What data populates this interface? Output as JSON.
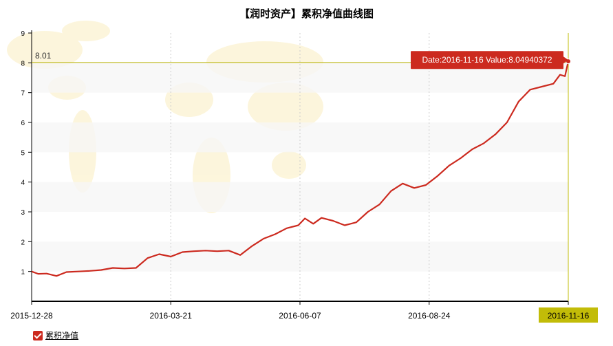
{
  "chart_data": {
    "type": "line",
    "title": "【润时资产】累积净值曲线图",
    "x_ticks": [
      "2015-12-28",
      "2016-03-21",
      "2016-06-07",
      "2016-08-24",
      "2016-11-16"
    ],
    "y_ticks": [
      1,
      2,
      3,
      4,
      5,
      6,
      7,
      8,
      9
    ],
    "ylim": [
      0,
      9
    ],
    "xlim": [
      "2015-12-28",
      "2016-11-16"
    ],
    "grid": "horizontal bands, dotted vertical lines",
    "legend_position": "bottom-left",
    "series": [
      {
        "name": "累积净值",
        "color": "#cc2a1f",
        "x": [
          "2015-12-28",
          "2016-01-01",
          "2016-01-06",
          "2016-01-12",
          "2016-01-18",
          "2016-01-25",
          "2016-02-01",
          "2016-02-08",
          "2016-02-15",
          "2016-02-22",
          "2016-02-29",
          "2016-03-07",
          "2016-03-14",
          "2016-03-21",
          "2016-03-28",
          "2016-04-04",
          "2016-04-11",
          "2016-04-18",
          "2016-04-25",
          "2016-05-02",
          "2016-05-09",
          "2016-05-16",
          "2016-05-23",
          "2016-05-30",
          "2016-06-06",
          "2016-06-10",
          "2016-06-15",
          "2016-06-20",
          "2016-06-27",
          "2016-07-04",
          "2016-07-11",
          "2016-07-18",
          "2016-07-25",
          "2016-08-01",
          "2016-08-08",
          "2016-08-15",
          "2016-08-22",
          "2016-08-29",
          "2016-09-05",
          "2016-09-12",
          "2016-09-19",
          "2016-09-26",
          "2016-10-03",
          "2016-10-10",
          "2016-10-17",
          "2016-10-24",
          "2016-10-31",
          "2016-11-07",
          "2016-11-11",
          "2016-11-14",
          "2016-11-16"
        ],
        "values": [
          1.0,
          0.92,
          0.93,
          0.85,
          0.98,
          1.0,
          1.02,
          1.05,
          1.12,
          1.1,
          1.12,
          1.45,
          1.58,
          1.5,
          1.65,
          1.68,
          1.7,
          1.68,
          1.7,
          1.55,
          1.85,
          2.1,
          2.25,
          2.45,
          2.55,
          2.78,
          2.6,
          2.8,
          2.7,
          2.55,
          2.65,
          3.0,
          3.25,
          3.7,
          3.95,
          3.8,
          3.9,
          4.2,
          4.55,
          4.8,
          5.1,
          5.3,
          5.6,
          6.0,
          6.7,
          7.1,
          7.2,
          7.3,
          7.6,
          7.55,
          8.05
        ]
      }
    ],
    "reference_line": {
      "value": 8.01,
      "label": "8.01"
    },
    "tooltip": {
      "text": "Date:2016-11-16  Value:8.04940372",
      "date": "2016-11-16",
      "value": 8.04940372
    },
    "highlight_x_label": "2016-11-16"
  }
}
